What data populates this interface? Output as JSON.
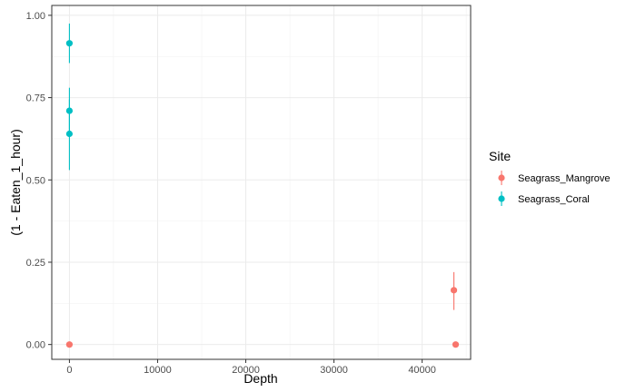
{
  "chart_data": {
    "type": "scatter",
    "xlabel": "Depth",
    "ylabel": "(1 - Eaten_1_hour)",
    "xlim": [
      -2000,
      45500
    ],
    "ylim": [
      -0.045,
      1.03
    ],
    "x_ticks": [
      0,
      10000,
      20000,
      30000,
      40000
    ],
    "x_tick_labels": [
      "0",
      "10000",
      "20000",
      "30000",
      "40000"
    ],
    "y_ticks": [
      0.0,
      0.25,
      0.5,
      0.75,
      1.0
    ],
    "y_tick_labels": [
      "0.00",
      "0.25",
      "0.50",
      "0.75",
      "1.00"
    ],
    "grid": true,
    "legend": {
      "title": "Site",
      "position": "right"
    },
    "series": [
      {
        "name": "Seagrass_Mangrove",
        "color": "#F8766D",
        "points": [
          {
            "x": 0,
            "y": 0.0,
            "ymin": 0.0,
            "ymax": 0.0
          },
          {
            "x": 43600,
            "y": 0.165,
            "ymin": 0.105,
            "ymax": 0.22
          },
          {
            "x": 43800,
            "y": 0.0,
            "ymin": 0.0,
            "ymax": 0.0
          }
        ]
      },
      {
        "name": "Seagrass_Coral",
        "color": "#00BFC4",
        "points": [
          {
            "x": 0,
            "y": 0.915,
            "ymin": 0.855,
            "ymax": 0.975
          },
          {
            "x": 0,
            "y": 0.71,
            "ymin": 0.64,
            "ymax": 0.78
          },
          {
            "x": 0,
            "y": 0.64,
            "ymin": 0.53,
            "ymax": 0.745
          }
        ]
      }
    ]
  }
}
